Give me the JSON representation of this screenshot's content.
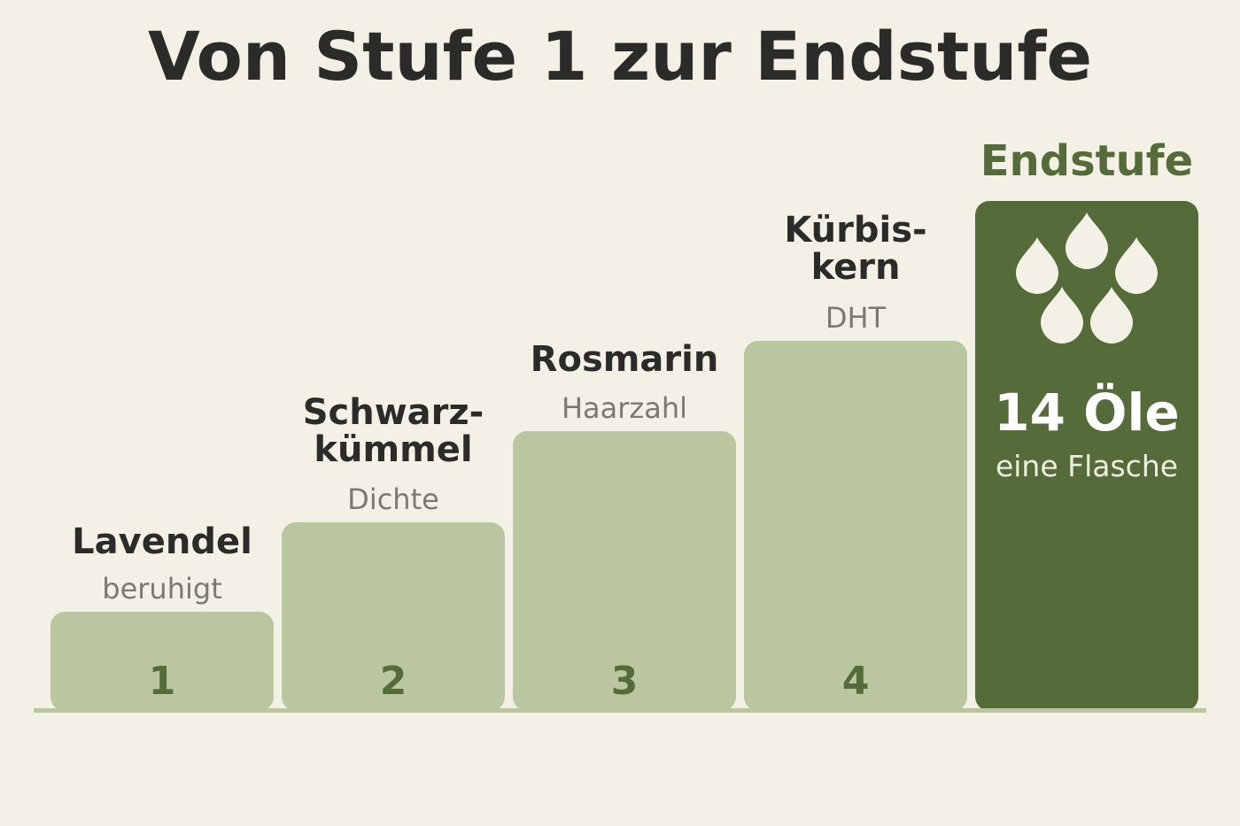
{
  "title": "Von Stufe 1 zur Endstufe",
  "steps": [
    {
      "number": "1",
      "name": "Lavendel",
      "subtitle": "beruhigt"
    },
    {
      "number": "2",
      "name": "Schwarz-\nkümmel",
      "subtitle": "Dichte"
    },
    {
      "number": "3",
      "name": "Rosmarin",
      "subtitle": "Haarzahl"
    },
    {
      "number": "4",
      "name": "Kürbis-\nkern",
      "subtitle": "DHT"
    }
  ],
  "final": {
    "label": "Endstufe",
    "count": "14 Öle",
    "subtitle": "eine Flasche",
    "icon": "oil-drops-icon"
  },
  "colors": {
    "background": "#f3f1e6",
    "step_fill": "#b9c6a0",
    "final_fill": "#566b3a",
    "accent": "#566b3a"
  }
}
